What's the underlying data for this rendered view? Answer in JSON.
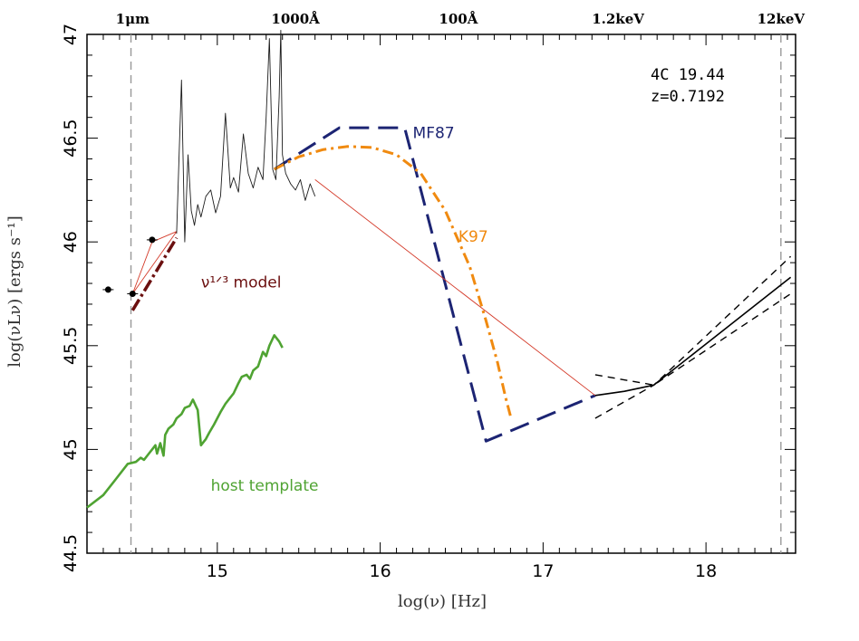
{
  "chart_data": {
    "type": "line",
    "title": "",
    "annotation_lines": [
      "4C 19.44",
      "z=0.7192"
    ],
    "xlabel": "log(ν) [Hz]",
    "ylabel": "log(νLν) [ergs s⁻¹]",
    "xlim": [
      14.2,
      18.55
    ],
    "ylim": [
      44.5,
      47.0
    ],
    "x_ticks": [
      15,
      16,
      17,
      18
    ],
    "y_ticks": [
      44.5,
      45,
      45.5,
      46,
      46.5,
      47
    ],
    "y_tick_labels": [
      "44.5",
      "45",
      "45.5",
      "46",
      "46.5",
      "47"
    ],
    "x_tick_labels": [
      "15",
      "16",
      "17",
      "18"
    ],
    "top_axis": [
      {
        "x": 14.48,
        "label": "1μm"
      },
      {
        "x": 15.48,
        "label": "1000Å"
      },
      {
        "x": 16.48,
        "label": "100Å"
      },
      {
        "x": 17.46,
        "label": "1.2keV"
      },
      {
        "x": 18.46,
        "label": "12keV"
      }
    ],
    "vertical_dashed_lines": [
      14.47,
      18.46
    ],
    "grid": false,
    "series": [
      {
        "name": "MF87",
        "color": "#1c2473",
        "style": "long-dash",
        "x": [
          15.35,
          15.75,
          16.15,
          16.65,
          17.32
        ],
        "y": [
          46.35,
          46.55,
          46.55,
          45.04,
          45.26
        ]
      },
      {
        "name": "K97",
        "color": "#f08a10",
        "style": "dash-dot",
        "x": [
          15.35,
          15.5,
          15.65,
          15.8,
          15.95,
          16.1,
          16.25,
          16.4,
          16.55,
          16.65,
          16.72,
          16.77,
          16.8
        ],
        "y": [
          46.35,
          46.41,
          46.445,
          46.46,
          46.455,
          46.42,
          46.33,
          46.15,
          45.88,
          45.62,
          45.42,
          45.25,
          45.16
        ]
      },
      {
        "name": "host template",
        "color": "#4fa332",
        "style": "solid",
        "x": [
          14.2,
          14.3,
          14.38,
          14.45,
          14.5,
          14.53,
          14.55,
          14.58,
          14.6,
          14.62,
          14.63,
          14.65,
          14.67,
          14.68,
          14.7,
          14.73,
          14.75,
          14.78,
          14.8,
          14.83,
          14.85,
          14.88,
          14.9,
          14.93,
          14.95,
          14.98,
          15.02,
          15.05,
          15.08,
          15.1,
          15.13,
          15.15,
          15.18,
          15.2,
          15.22,
          15.25,
          15.28,
          15.3,
          15.32,
          15.35,
          15.38,
          15.4
        ],
        "y": [
          44.72,
          44.78,
          44.86,
          44.93,
          44.94,
          44.96,
          44.95,
          44.98,
          45.0,
          45.02,
          44.98,
          45.03,
          44.97,
          45.07,
          45.1,
          45.12,
          45.15,
          45.17,
          45.2,
          45.21,
          45.24,
          45.19,
          45.02,
          45.05,
          45.08,
          45.12,
          45.18,
          45.22,
          45.25,
          45.27,
          45.32,
          45.35,
          45.36,
          45.34,
          45.38,
          45.4,
          45.47,
          45.45,
          45.5,
          45.55,
          45.52,
          45.49
        ]
      },
      {
        "name": "ν^1/3 model",
        "color": "#6b0f0f",
        "style": "dash-dot-thick",
        "x": [
          14.48,
          14.75
        ],
        "y": [
          45.67,
          46.02
        ]
      },
      {
        "name": "",
        "color": "#d43b2a",
        "style": "thin",
        "x": [
          15.6,
          17.32
        ],
        "y": [
          46.3,
          45.26
        ]
      },
      {
        "name": "",
        "color": "#d43b2a",
        "style": "thin",
        "x": [
          14.48,
          14.6,
          14.75,
          14.48
        ],
        "y": [
          45.75,
          46.0,
          46.05,
          45.75
        ]
      },
      {
        "name": "",
        "color": "#000000",
        "style": "solid",
        "x": [
          17.32,
          17.5,
          17.68
        ],
        "y": [
          45.26,
          45.28,
          45.31
        ]
      },
      {
        "name": "",
        "color": "#000000",
        "style": "solid",
        "x": [
          17.68,
          18.52
        ],
        "y": [
          45.31,
          45.83
        ]
      },
      {
        "name": "",
        "color": "#000000",
        "style": "short-dash",
        "x": [
          17.32,
          17.68,
          18.52
        ],
        "y": [
          45.15,
          45.31,
          45.93
        ]
      },
      {
        "name": "",
        "color": "#000000",
        "style": "short-dash",
        "x": [
          17.32,
          17.68,
          18.52
        ],
        "y": [
          45.36,
          45.31,
          45.75
        ]
      },
      {
        "name": "",
        "color": "#1c1c1c",
        "style": "thin",
        "x": [
          14.75,
          14.78,
          14.8,
          14.82,
          14.84,
          14.86,
          14.88,
          14.9,
          14.93,
          14.96,
          14.99,
          15.02,
          15.05,
          15.08,
          15.1,
          15.13,
          15.16,
          15.19,
          15.22,
          15.25,
          15.28,
          15.3,
          15.32,
          15.34,
          15.36,
          15.38,
          15.39,
          15.4,
          15.42,
          15.45,
          15.48,
          15.51,
          15.54,
          15.57,
          15.6
        ],
        "y": [
          46.04,
          46.78,
          46.0,
          46.42,
          46.15,
          46.08,
          46.18,
          46.12,
          46.22,
          46.25,
          46.14,
          46.22,
          46.62,
          46.26,
          46.31,
          46.24,
          46.52,
          46.33,
          46.26,
          46.36,
          46.3,
          46.6,
          46.98,
          46.35,
          46.3,
          46.7,
          47.02,
          46.42,
          46.33,
          46.28,
          46.25,
          46.3,
          46.2,
          46.28,
          46.22
        ]
      }
    ],
    "points": [
      {
        "x": 14.33,
        "y": 45.77
      },
      {
        "x": 14.48,
        "y": 45.75
      },
      {
        "x": 14.6,
        "y": 46.01
      }
    ],
    "series_labels": [
      {
        "text": "MF87",
        "color": "#1c2473",
        "x": 16.2,
        "y": 46.5
      },
      {
        "text": "K97",
        "color": "#f08a10",
        "x": 16.48,
        "y": 46.0
      },
      {
        "text": "ν¹ᐟ³ model",
        "color": "#6b0f0f",
        "x": 14.9,
        "y": 45.78
      },
      {
        "text": "host template",
        "color": "#4fa332",
        "x": 14.96,
        "y": 44.8
      }
    ]
  }
}
